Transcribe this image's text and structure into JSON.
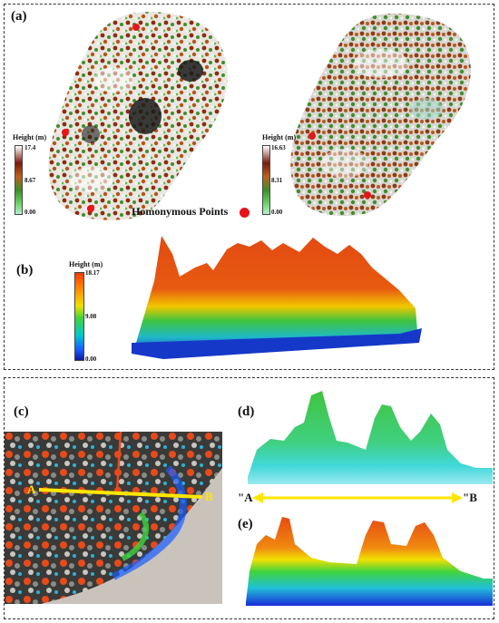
{
  "panels": {
    "a": "(a)",
    "b": "(b)",
    "c": "(c)",
    "d": "(d)",
    "e": "(e)"
  },
  "legend_a_left": {
    "title": "Height (m)",
    "max": "17.4",
    "mid": "8.67",
    "min": "0.00"
  },
  "legend_a_right": {
    "title": "Height (m)",
    "max": "16.63",
    "mid": "8.31",
    "min": "0.00"
  },
  "legend_b": {
    "title": "Height (m)",
    "max": "18.17",
    "mid": "9.08",
    "min": "0.00"
  },
  "homonymous_label": "Homonymous Points",
  "transect": {
    "start": "A",
    "end": "B",
    "start_d": "\"A",
    "end_d": "\"B"
  },
  "colors": {
    "dashed_border": "#333333",
    "homonymous_dot": "#e8141a",
    "transect_line": "#ffe600"
  }
}
